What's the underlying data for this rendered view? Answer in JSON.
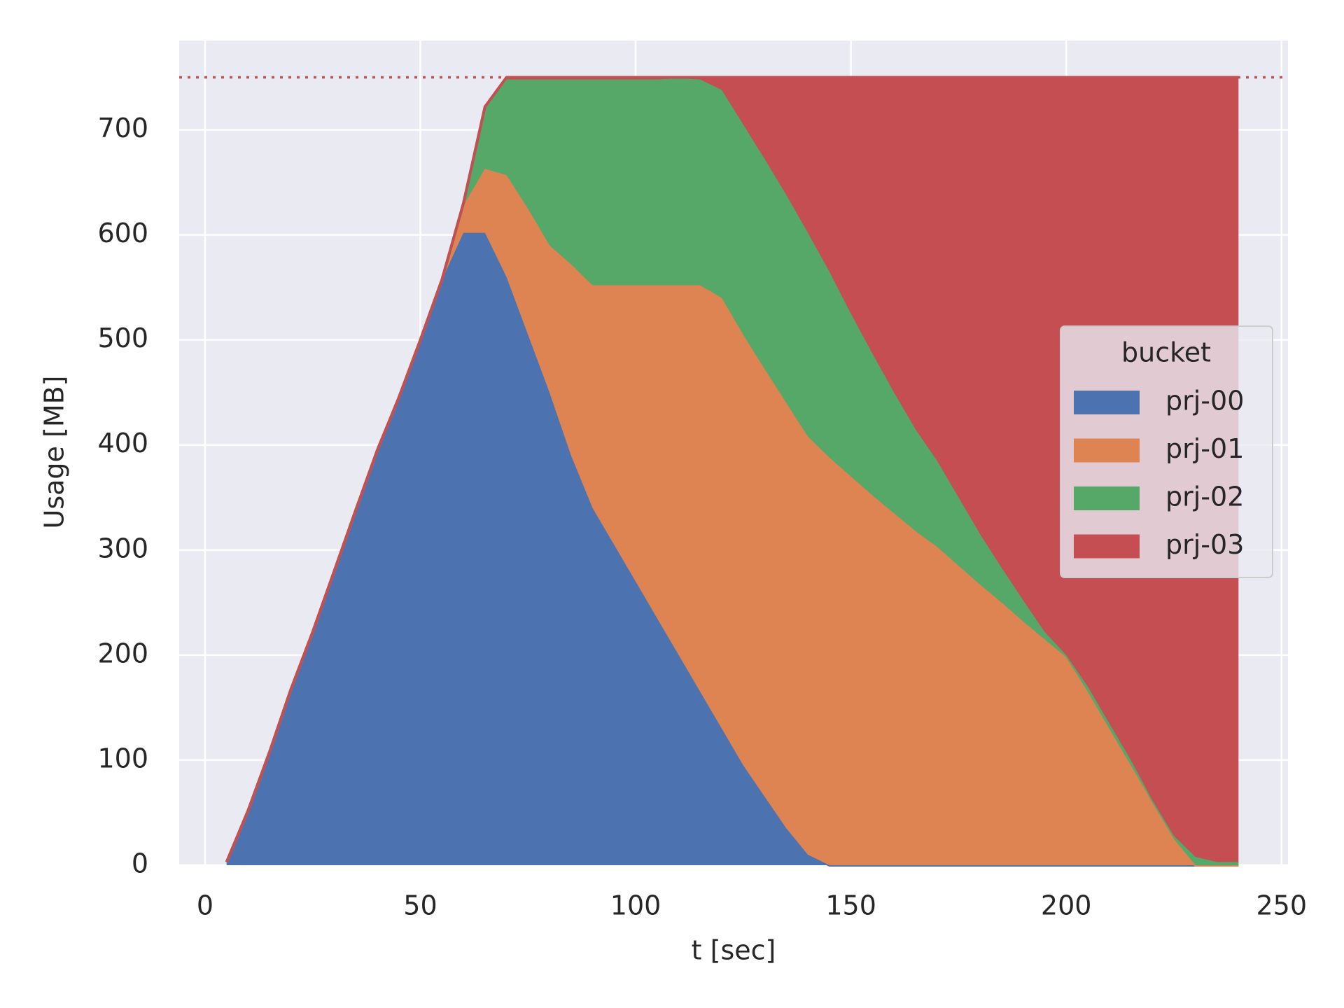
{
  "chart_data": {
    "type": "stacked-area",
    "xlabel": "t [sec]",
    "ylabel": "Usage [MB]",
    "x": [
      5,
      10,
      15,
      20,
      25,
      30,
      35,
      40,
      45,
      50,
      55,
      60,
      65,
      70,
      75,
      80,
      85,
      90,
      95,
      100,
      105,
      110,
      115,
      120,
      125,
      130,
      135,
      140,
      145,
      150,
      155,
      160,
      165,
      170,
      175,
      180,
      185,
      190,
      195,
      200,
      205,
      210,
      215,
      220,
      225,
      230,
      235,
      240
    ],
    "series": [
      {
        "name": "prj-00",
        "color": "#4c72b0",
        "values": [
          3,
          52,
          108,
          168,
          222,
          280,
          338,
          395,
          445,
          500,
          557,
          602,
          602,
          560,
          505,
          450,
          390,
          340,
          305,
          270,
          235,
          200,
          165,
          130,
          95,
          65,
          35,
          10,
          0,
          0,
          0,
          0,
          0,
          0,
          0,
          0,
          0,
          0,
          0,
          0,
          0,
          0,
          0,
          0,
          0,
          0,
          0,
          0
        ]
      },
      {
        "name": "prj-01",
        "color": "#dd8452",
        "values": [
          0,
          0,
          0,
          0,
          0,
          0,
          0,
          0,
          0,
          0,
          0,
          26,
          61,
          97,
          120,
          140,
          182,
          212,
          247,
          282,
          317,
          352,
          387,
          410,
          410,
          407,
          405,
          398,
          388,
          370,
          352,
          335,
          318,
          303,
          285,
          267,
          250,
          232,
          215,
          198,
          165,
          130,
          95,
          60,
          25,
          0,
          0,
          0
        ]
      },
      {
        "name": "prj-02",
        "color": "#55a868",
        "values": [
          0,
          0,
          0,
          0,
          0,
          0,
          0,
          0,
          0,
          0,
          0,
          2,
          59,
          91,
          123,
          158,
          176,
          196,
          196,
          196,
          196,
          197,
          196,
          198,
          200,
          200,
          198,
          194,
          177,
          155,
          135,
          115,
          97,
          82,
          65,
          48,
          33,
          20,
          7,
          2,
          5,
          5,
          5,
          2,
          3,
          8,
          3,
          3
        ]
      },
      {
        "name": "prj-03",
        "color": "#c44e52",
        "values": [
          0,
          0,
          0,
          0,
          0,
          0,
          0,
          0,
          0,
          0,
          0,
          0,
          0,
          2,
          2,
          2,
          2,
          2,
          2,
          2,
          2,
          1,
          2,
          12,
          45,
          78,
          112,
          148,
          185,
          225,
          263,
          300,
          335,
          365,
          400,
          435,
          467,
          498,
          528,
          550,
          580,
          615,
          650,
          688,
          722,
          742,
          747,
          747
        ]
      }
    ],
    "hline": {
      "value": 750,
      "color": "#c44e52"
    },
    "xlim": [
      -6,
      251.5
    ],
    "ylim": [
      0,
      785
    ],
    "xticks": [
      0,
      50,
      100,
      150,
      200,
      250
    ],
    "yticks": [
      0,
      100,
      200,
      300,
      400,
      500,
      600,
      700
    ],
    "grid": true,
    "legend": {
      "title": "bucket",
      "position": "right"
    }
  }
}
